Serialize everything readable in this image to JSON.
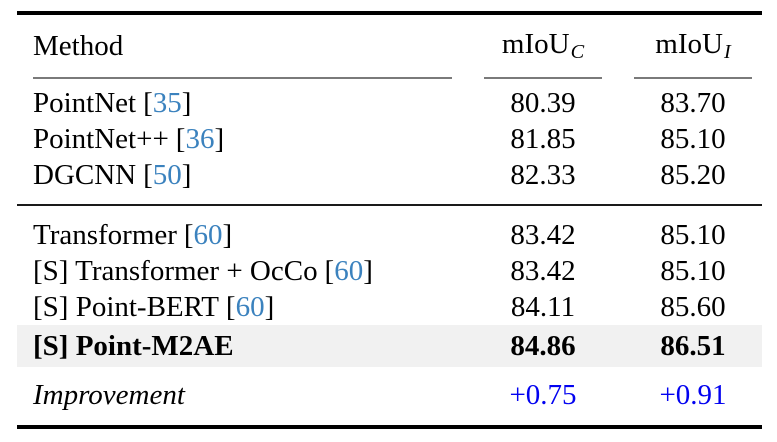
{
  "table": {
    "citation_brackets": [
      "[",
      "]"
    ],
    "header": {
      "method": "Method",
      "col_c": {
        "base": "mIoU",
        "sub": "C"
      },
      "col_i": {
        "base": "mIoU",
        "sub": "I"
      }
    },
    "groups": [
      {
        "rows": [
          {
            "method": "PointNet",
            "cite": "35",
            "miou_c": "80.39",
            "miou_i": "83.70"
          },
          {
            "method": "PointNet++",
            "cite": "36",
            "miou_c": "81.85",
            "miou_i": "85.10"
          },
          {
            "method": "DGCNN",
            "cite": "50",
            "miou_c": "82.33",
            "miou_i": "85.20"
          }
        ]
      },
      {
        "rows": [
          {
            "method": "Transformer",
            "cite": "60",
            "miou_c": "83.42",
            "miou_i": "85.10"
          },
          {
            "method": "[S] Transformer + OcCo",
            "cite": "60",
            "miou_c": "83.42",
            "miou_i": "85.10"
          },
          {
            "method": "[S] Point-BERT",
            "cite": "60",
            "miou_c": "84.11",
            "miou_i": "85.60"
          },
          {
            "method": "[S] Point-M2AE",
            "cite": "",
            "miou_c": "84.86",
            "miou_i": "86.51",
            "highlight": true,
            "bold": true
          }
        ]
      }
    ],
    "improvement": {
      "label": "Improvement",
      "miou_c": "+0.75",
      "miou_i": "+0.91"
    }
  },
  "colors": {
    "citation_blue": "#3B82BE",
    "improvement_blue": "#0202F0",
    "highlight_bg": "#F1F1F1",
    "rule_heavy": "#000000",
    "rule_mid": "#1A1A1A",
    "rule_light": "#7A7A7A",
    "text": "#000000",
    "background": "#FFFFFF"
  }
}
